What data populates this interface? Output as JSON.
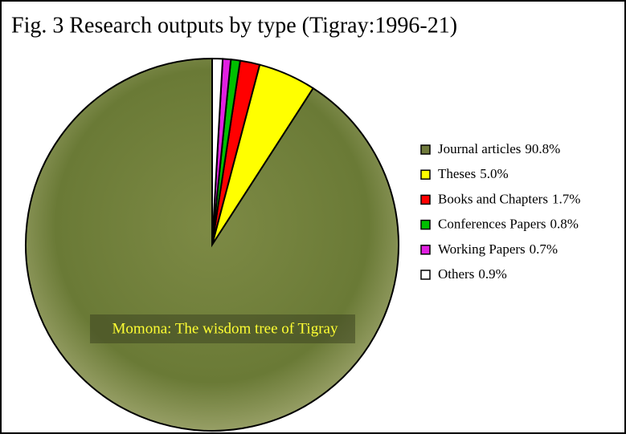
{
  "chart_data": {
    "type": "pie",
    "title": "Fig. 3 Research outputs by type (Tigray:1996-21)",
    "annotation": "Momona: The wisdom tree of Tigray",
    "categories": [
      "Journal articles",
      "Theses",
      "Books and Chapters",
      "Conferences Papers",
      "Working Papers",
      "Others"
    ],
    "values": [
      90.8,
      5.0,
      1.7,
      0.8,
      0.7,
      0.9
    ],
    "value_labels": [
      "90.8%",
      "5.0%",
      "1.7%",
      "0.8%",
      "0.7%",
      "0.9%"
    ],
    "colors": [
      "#6f7a3c",
      "#ffff00",
      "#ff0000",
      "#00c000",
      "#e020e0",
      "#ffffff"
    ],
    "legend": "right"
  }
}
